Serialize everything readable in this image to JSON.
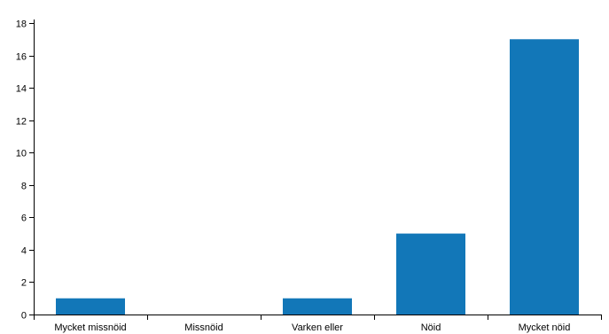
{
  "chart_data": {
    "type": "bar",
    "categories": [
      "Mycket missnöid",
      "Missnöid",
      "Varken eller",
      "Nöid",
      "Mycket nöid"
    ],
    "values": [
      1,
      0,
      1,
      5,
      17
    ],
    "ylim": [
      0,
      18
    ],
    "yticks": [
      0,
      2,
      4,
      6,
      8,
      10,
      12,
      14,
      16,
      18
    ],
    "bar_color": "#1277b8",
    "grid": false,
    "legend": "none"
  }
}
